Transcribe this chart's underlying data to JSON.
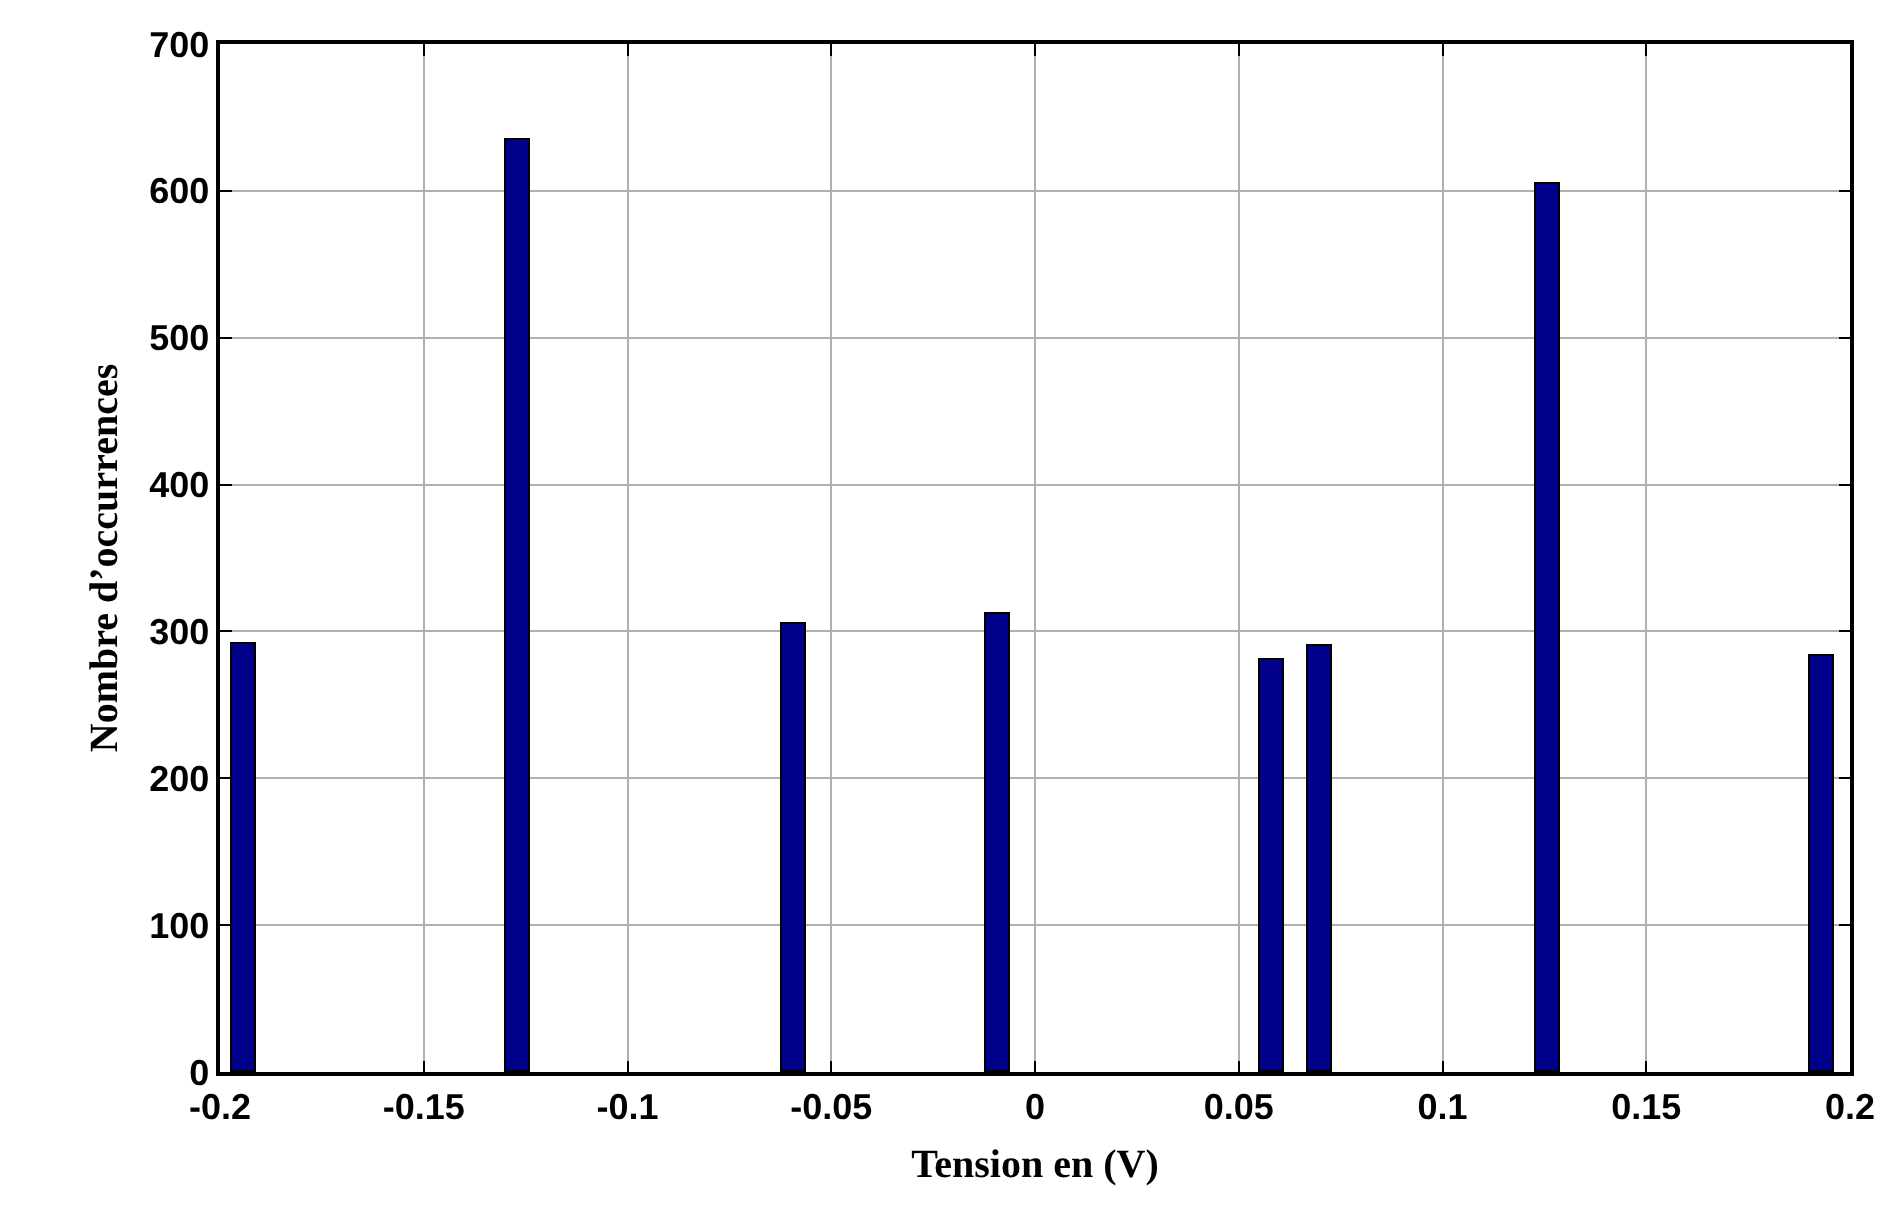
{
  "chart_data": {
    "type": "bar",
    "xlabel": "Tension en (V)",
    "ylabel": "Nombre d’occurrences",
    "x": [
      -0.194,
      -0.127,
      -0.059,
      -0.009,
      0.058,
      0.07,
      0.126,
      0.193
    ],
    "values": [
      291,
      634,
      305,
      312,
      280,
      290,
      605,
      283
    ],
    "color": "#00008b",
    "xlim": [
      -0.2,
      0.2
    ],
    "xticks": [
      -0.2,
      -0.15,
      -0.1,
      -0.05,
      0,
      0.05,
      0.1,
      0.15,
      0.2
    ],
    "ylim": [
      0,
      700
    ],
    "yticks": [
      0,
      100,
      200,
      300,
      400,
      500,
      600,
      700
    ],
    "grid": true
  }
}
